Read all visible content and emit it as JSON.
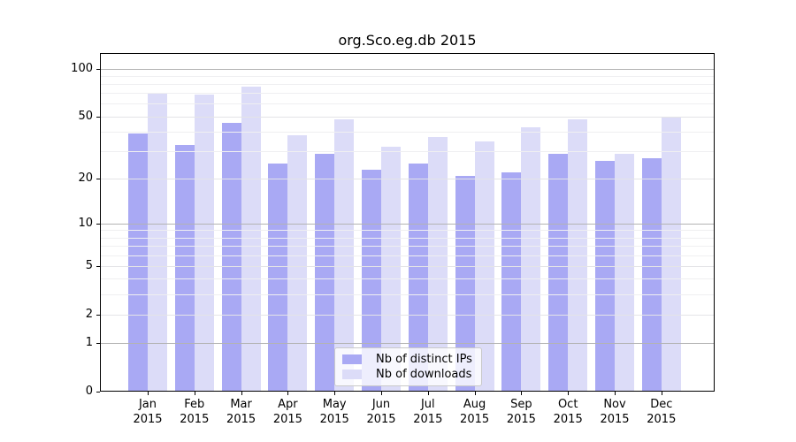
{
  "page": {
    "background": "#ffffff"
  },
  "chart_data": {
    "type": "bar",
    "title": "org.Sco.eg.db 2015",
    "categories": [
      "Jan 2015",
      "Feb 2015",
      "Mar 2015",
      "Apr 2015",
      "May 2015",
      "Jun 2015",
      "Jul 2015",
      "Aug 2015",
      "Sep 2015",
      "Oct 2015",
      "Nov 2015",
      "Dec 2015"
    ],
    "x_tick_labels_line1": [
      "Jan",
      "Feb",
      "Mar",
      "Apr",
      "May",
      "Jun",
      "Jul",
      "Aug",
      "Sep",
      "Oct",
      "Nov",
      "Dec"
    ],
    "x_tick_labels_line2": "2015",
    "series": [
      {
        "name": "Nb of distinct IPs",
        "color": "#a9a9f4",
        "values": [
          39,
          33,
          46,
          25,
          29,
          23,
          25,
          21,
          22,
          29,
          26,
          27
        ]
      },
      {
        "name": "Nb of downloads",
        "color": "#dcdcf8",
        "values": [
          71,
          69,
          77,
          38,
          48,
          32,
          37,
          35,
          43,
          48,
          29,
          50
        ]
      }
    ],
    "xlabel": "",
    "ylabel": "",
    "yscale": "log10(1+x)",
    "ylim": [
      0,
      126
    ],
    "y_tick_labels": [
      "100",
      "50",
      "20",
      "10",
      "5",
      "2",
      "1",
      "0"
    ],
    "y_tick_values": [
      100,
      50,
      20,
      10,
      5,
      2,
      1,
      0
    ],
    "y_gridlines_decade": [
      1,
      10,
      100
    ],
    "y_gridlines_major": [
      2,
      5,
      20,
      50
    ],
    "y_gridlines_minor": [
      3,
      4,
      6,
      7,
      8,
      9,
      30,
      40,
      60,
      70,
      80,
      90
    ],
    "grid": "horizontal",
    "legend_position": "lower center",
    "colors": {
      "grid_decade": "#b3b3b3",
      "grid_major": "#e4e4e7",
      "grid_minor": "#efeff1",
      "axis": "#000000",
      "legend_border": "#c9c9c9",
      "legend_background": "rgba(255,255,255,0.8)"
    }
  }
}
